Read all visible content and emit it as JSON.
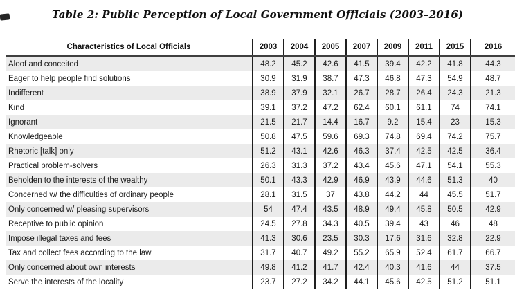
{
  "title": "Table 2: Public Perception of Local Government Officials (2003–2016)",
  "table": {
    "header": {
      "characteristics_label": "Characteristics of Local Officials",
      "years": [
        "2003",
        "2004",
        "2005",
        "2007",
        "2009",
        "2011",
        "2015",
        "2016"
      ]
    },
    "rows": [
      {
        "label": "Aloof and conceited",
        "values": [
          48.2,
          45.2,
          42.6,
          41.5,
          39.4,
          42.2,
          41.8,
          44.3
        ]
      },
      {
        "label": "Eager to help people find solutions",
        "values": [
          30.9,
          31.9,
          38.7,
          47.3,
          46.8,
          47.3,
          54.9,
          48.7
        ]
      },
      {
        "label": "Indifferent",
        "values": [
          38.9,
          37.9,
          32.1,
          26.7,
          28.7,
          26.4,
          24.3,
          21.3
        ]
      },
      {
        "label": "Kind",
        "values": [
          39.1,
          37.2,
          47.2,
          62.4,
          60.1,
          61.1,
          74,
          74.1
        ]
      },
      {
        "label": "Ignorant",
        "values": [
          21.5,
          21.7,
          14.4,
          16.7,
          9.2,
          15.4,
          23,
          15.3
        ]
      },
      {
        "label": "Knowledgeable",
        "values": [
          50.8,
          47.5,
          59.6,
          69.3,
          74.8,
          69.4,
          74.2,
          75.7
        ]
      },
      {
        "label": "Rhetoric [talk] only",
        "values": [
          51.2,
          43.1,
          42.6,
          46.3,
          37.4,
          42.5,
          42.5,
          36.4
        ]
      },
      {
        "label": "Practical problem-solvers",
        "values": [
          26.3,
          31.3,
          37.2,
          43.4,
          45.6,
          47.1,
          54.1,
          55.3
        ]
      },
      {
        "label": "Beholden to the interests of the wealthy",
        "values": [
          50.1,
          43.3,
          42.9,
          46.9,
          43.9,
          44.6,
          51.3,
          40
        ]
      },
      {
        "label": "Concerned w/ the difficulties of ordinary people",
        "values": [
          28.1,
          31.5,
          37,
          43.8,
          44.2,
          44,
          45.5,
          51.7
        ]
      },
      {
        "label": "Only concerned w/ pleasing supervisors",
        "values": [
          54,
          47.4,
          43.5,
          48.9,
          49.4,
          45.8,
          50.5,
          42.9
        ]
      },
      {
        "label": "Receptive to public opinion",
        "values": [
          24.5,
          27.8,
          34.3,
          40.5,
          39.4,
          43,
          46,
          48
        ]
      },
      {
        "label": "Impose illegal taxes and fees",
        "values": [
          41.3,
          30.6,
          23.5,
          30.3,
          17.6,
          31.6,
          32.8,
          22.9
        ]
      },
      {
        "label": "Tax and collect fees according to the law",
        "values": [
          31.7,
          40.7,
          49.2,
          55.2,
          65.9,
          52.4,
          61.7,
          66.7
        ]
      },
      {
        "label": "Only concerned about own interests",
        "values": [
          49.8,
          41.2,
          41.7,
          42.4,
          40.3,
          41.6,
          44,
          37.5
        ]
      },
      {
        "label": "Serve the interests of the locality",
        "values": [
          23.7,
          27.2,
          34.2,
          44.1,
          45.6,
          42.5,
          51.2,
          51.1
        ]
      }
    ]
  },
  "colors": {
    "row_stripe": "#ebebeb",
    "header_rule": "#3f3f3f",
    "grid_line": "#1f1f1f",
    "top_rule": "#9a9a9a",
    "text": "#1a1a1a"
  }
}
